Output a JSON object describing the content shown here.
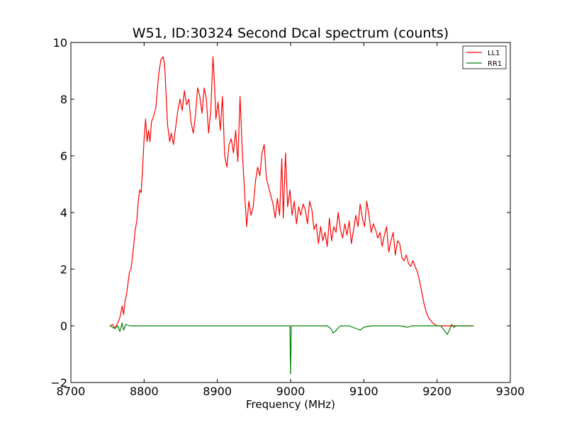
{
  "chart_data": {
    "type": "line",
    "title": "W51, ID:30324 Second Dcal spectrum (counts)",
    "xlabel": "Frequency (MHz)",
    "ylabel": "",
    "xlim": [
      8700,
      9300
    ],
    "ylim": [
      -2,
      10
    ],
    "x_ticks": [
      "8700",
      "8800",
      "8900",
      "9000",
      "9100",
      "9200",
      "9300"
    ],
    "y_ticks": [
      "−2",
      "0",
      "2",
      "4",
      "6",
      "8",
      "10"
    ],
    "grid": false,
    "legend_position": "top-right",
    "series": [
      {
        "name": "LL1",
        "color": "#ff0000",
        "points": [
          [
            8753,
            0.0
          ],
          [
            8757,
            0.05
          ],
          [
            8760,
            -0.1
          ],
          [
            8764,
            0.1
          ],
          [
            8767,
            0.3
          ],
          [
            8770,
            0.7
          ],
          [
            8772,
            0.4
          ],
          [
            8774,
            0.9
          ],
          [
            8776,
            1.1
          ],
          [
            8778,
            1.5
          ],
          [
            8780,
            1.9
          ],
          [
            8782,
            2.0
          ],
          [
            8784,
            2.4
          ],
          [
            8786,
            2.9
          ],
          [
            8788,
            3.4
          ],
          [
            8790,
            3.7
          ],
          [
            8792,
            4.4
          ],
          [
            8794,
            4.8
          ],
          [
            8796,
            4.7
          ],
          [
            8798,
            5.6
          ],
          [
            8800,
            6.6
          ],
          [
            8802,
            7.3
          ],
          [
            8804,
            6.5
          ],
          [
            8806,
            6.9
          ],
          [
            8808,
            6.5
          ],
          [
            8810,
            7.2
          ],
          [
            8813,
            7.4
          ],
          [
            8816,
            7.7
          ],
          [
            8818,
            8.3
          ],
          [
            8820,
            8.9
          ],
          [
            8823,
            9.4
          ],
          [
            8826,
            9.5
          ],
          [
            8828,
            9.2
          ],
          [
            8830,
            8.2
          ],
          [
            8832,
            7.1
          ],
          [
            8835,
            6.5
          ],
          [
            8837,
            6.8
          ],
          [
            8840,
            6.4
          ],
          [
            8843,
            7.0
          ],
          [
            8846,
            7.6
          ],
          [
            8849,
            8.0
          ],
          [
            8852,
            7.6
          ],
          [
            8855,
            8.3
          ],
          [
            8858,
            7.8
          ],
          [
            8861,
            8.0
          ],
          [
            8864,
            7.2
          ],
          [
            8867,
            6.8
          ],
          [
            8870,
            7.4
          ],
          [
            8873,
            8.4
          ],
          [
            8876,
            8.1
          ],
          [
            8879,
            7.5
          ],
          [
            8882,
            8.4
          ],
          [
            8885,
            8.0
          ],
          [
            8888,
            6.8
          ],
          [
            8891,
            7.6
          ],
          [
            8894,
            9.5
          ],
          [
            8896,
            8.6
          ],
          [
            8898,
            7.3
          ],
          [
            8901,
            7.9
          ],
          [
            8904,
            6.9
          ],
          [
            8907,
            8.1
          ],
          [
            8910,
            6.0
          ],
          [
            8913,
            5.6
          ],
          [
            8916,
            6.4
          ],
          [
            8919,
            6.6
          ],
          [
            8922,
            6.1
          ],
          [
            8925,
            6.9
          ],
          [
            8928,
            5.8
          ],
          [
            8931,
            8.1
          ],
          [
            8934,
            6.2
          ],
          [
            8937,
            4.8
          ],
          [
            8940,
            3.5
          ],
          [
            8943,
            4.4
          ],
          [
            8946,
            3.9
          ],
          [
            8949,
            4.2
          ],
          [
            8952,
            5.1
          ],
          [
            8955,
            5.6
          ],
          [
            8958,
            5.3
          ],
          [
            8961,
            6.1
          ],
          [
            8964,
            6.4
          ],
          [
            8967,
            5.2
          ],
          [
            8970,
            4.9
          ],
          [
            8973,
            4.6
          ],
          [
            8976,
            4.3
          ],
          [
            8979,
            3.8
          ],
          [
            8982,
            4.5
          ],
          [
            8985,
            3.9
          ],
          [
            8988,
            5.9
          ],
          [
            8990,
            3.8
          ],
          [
            8993,
            6.1
          ],
          [
            8996,
            4.2
          ],
          [
            8999,
            4.8
          ],
          [
            9002,
            3.9
          ],
          [
            9005,
            4.4
          ],
          [
            9008,
            3.6
          ],
          [
            9011,
            4.2
          ],
          [
            9014,
            3.9
          ],
          [
            9017,
            4.3
          ],
          [
            9020,
            4.1
          ],
          [
            9023,
            3.6
          ],
          [
            9026,
            4.4
          ],
          [
            9029,
            4.1
          ],
          [
            9032,
            3.4
          ],
          [
            9035,
            3.6
          ],
          [
            9038,
            2.9
          ],
          [
            9041,
            3.5
          ],
          [
            9044,
            3.0
          ],
          [
            9047,
            3.3
          ],
          [
            9050,
            2.8
          ],
          [
            9053,
            3.8
          ],
          [
            9056,
            3.0
          ],
          [
            9059,
            3.5
          ],
          [
            9062,
            3.3
          ],
          [
            9065,
            4.0
          ],
          [
            9068,
            3.4
          ],
          [
            9071,
            3.1
          ],
          [
            9074,
            3.6
          ],
          [
            9077,
            3.2
          ],
          [
            9080,
            3.7
          ],
          [
            9083,
            2.9
          ],
          [
            9086,
            3.4
          ],
          [
            9089,
            3.9
          ],
          [
            9092,
            3.5
          ],
          [
            9095,
            4.3
          ],
          [
            9098,
            3.8
          ],
          [
            9101,
            3.5
          ],
          [
            9104,
            4.4
          ],
          [
            9107,
            3.9
          ],
          [
            9110,
            3.3
          ],
          [
            9113,
            3.6
          ],
          [
            9116,
            3.4
          ],
          [
            9119,
            3.1
          ],
          [
            9122,
            3.3
          ],
          [
            9125,
            2.8
          ],
          [
            9128,
            3.2
          ],
          [
            9131,
            3.5
          ],
          [
            9134,
            2.6
          ],
          [
            9137,
            3.0
          ],
          [
            9140,
            3.3
          ],
          [
            9143,
            2.5
          ],
          [
            9146,
            3.0
          ],
          [
            9149,
            2.9
          ],
          [
            9152,
            2.4
          ],
          [
            9155,
            2.3
          ],
          [
            9158,
            2.5
          ],
          [
            9161,
            2.2
          ],
          [
            9164,
            2.1
          ],
          [
            9167,
            2.3
          ],
          [
            9170,
            2.1
          ],
          [
            9173,
            1.9
          ],
          [
            9176,
            1.6
          ],
          [
            9179,
            1.2
          ],
          [
            9182,
            0.8
          ],
          [
            9185,
            0.5
          ],
          [
            9188,
            0.3
          ],
          [
            9191,
            0.2
          ],
          [
            9194,
            0.1
          ],
          [
            9197,
            0.05
          ],
          [
            9200,
            0.0
          ],
          [
            9205,
            0.0
          ],
          [
            9210,
            0.0
          ],
          [
            9215,
            0.0
          ],
          [
            9220,
            0.0
          ],
          [
            9225,
            0.0
          ],
          [
            9230,
            0.0
          ],
          [
            9240,
            0.0
          ],
          [
            9250,
            0.0
          ]
        ]
      },
      {
        "name": "RR1",
        "color": "#008000",
        "points": [
          [
            8753,
            0.0
          ],
          [
            8757,
            -0.05
          ],
          [
            8760,
            -0.1
          ],
          [
            8764,
            0.0
          ],
          [
            8767,
            -0.2
          ],
          [
            8770,
            0.1
          ],
          [
            8772,
            -0.15
          ],
          [
            8775,
            0.05
          ],
          [
            8780,
            0.0
          ],
          [
            8790,
            0.0
          ],
          [
            8800,
            0.0
          ],
          [
            8820,
            0.0
          ],
          [
            8840,
            0.0
          ],
          [
            8860,
            0.0
          ],
          [
            8880,
            0.0
          ],
          [
            8900,
            0.0
          ],
          [
            8920,
            0.0
          ],
          [
            8940,
            0.0
          ],
          [
            8960,
            0.0
          ],
          [
            8980,
            0.0
          ],
          [
            8995,
            0.0
          ],
          [
            8999,
            0.0
          ],
          [
            9000,
            -1.7
          ],
          [
            9001,
            0.0
          ],
          [
            9010,
            0.0
          ],
          [
            9030,
            0.0
          ],
          [
            9050,
            0.0
          ],
          [
            9055,
            -0.1
          ],
          [
            9058,
            -0.25
          ],
          [
            9061,
            -0.2
          ],
          [
            9064,
            -0.1
          ],
          [
            9068,
            0.0
          ],
          [
            9080,
            0.0
          ],
          [
            9090,
            -0.1
          ],
          [
            9095,
            -0.15
          ],
          [
            9100,
            -0.05
          ],
          [
            9110,
            0.0
          ],
          [
            9130,
            0.0
          ],
          [
            9150,
            0.0
          ],
          [
            9160,
            -0.05
          ],
          [
            9165,
            0.0
          ],
          [
            9190,
            0.0
          ],
          [
            9205,
            0.0
          ],
          [
            9208,
            -0.1
          ],
          [
            9211,
            -0.2
          ],
          [
            9214,
            -0.3
          ],
          [
            9217,
            -0.15
          ],
          [
            9220,
            0.05
          ],
          [
            9223,
            -0.05
          ],
          [
            9226,
            0.0
          ],
          [
            9235,
            0.0
          ],
          [
            9250,
            0.0
          ]
        ]
      }
    ]
  }
}
